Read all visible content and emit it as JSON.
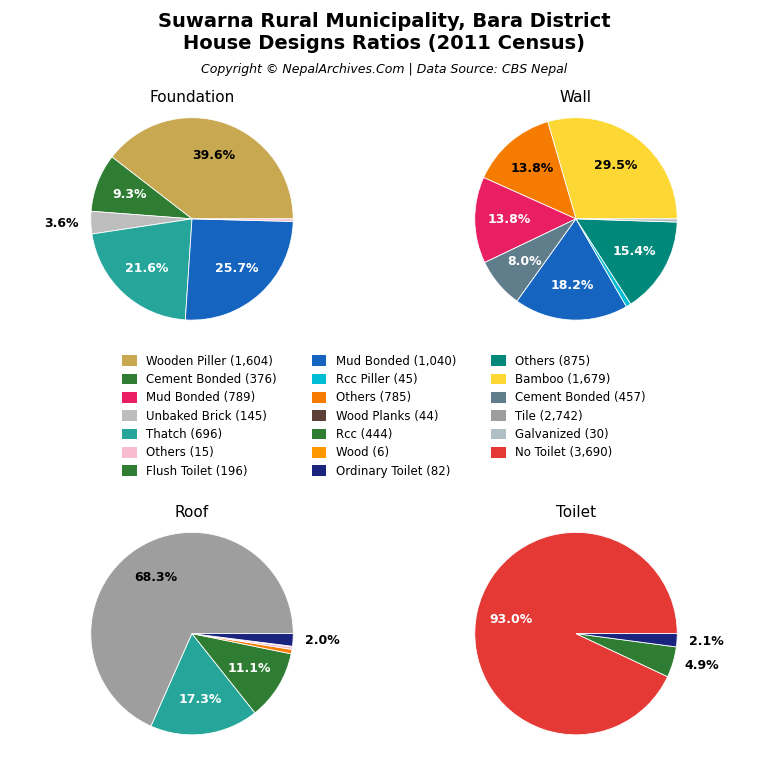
{
  "title": "Suwarna Rural Municipality, Bara District\nHouse Designs Ratios (2011 Census)",
  "subtitle": "Copyright © NepalArchives.Com | Data Source: CBS Nepal",
  "legend_entries": [
    {
      "name": "Wooden Piller (1,604)",
      "color": "#c8a850"
    },
    {
      "name": "Mud Bonded (1,040)",
      "color": "#1565c0"
    },
    {
      "name": "Others (875)",
      "color": "#00897b"
    },
    {
      "name": "Cement Bonded (376)",
      "color": "#2e7d32"
    },
    {
      "name": "Rcc Piller (45)",
      "color": "#00bcd4"
    },
    {
      "name": "Bamboo (1,679)",
      "color": "#fdd835"
    },
    {
      "name": "Mud Bonded (789)",
      "color": "#e91e63"
    },
    {
      "name": "Others (785)",
      "color": "#f57c00"
    },
    {
      "name": "Cement Bonded (457)",
      "color": "#607d8b"
    },
    {
      "name": "Unbaked Brick (145)",
      "color": "#bdbdbd"
    },
    {
      "name": "Wood Planks (44)",
      "color": "#5d4037"
    },
    {
      "name": "Tile (2,742)",
      "color": "#9e9e9e"
    },
    {
      "name": "Thatch (696)",
      "color": "#26a69a"
    },
    {
      "name": "Rcc (444)",
      "color": "#2e7d32"
    },
    {
      "name": "Galvanized (30)",
      "color": "#b0bec5"
    },
    {
      "name": "Others (15)",
      "color": "#f8bbd0"
    },
    {
      "name": "Wood (6)",
      "color": "#ff9800"
    },
    {
      "name": "No Toilet (3,690)",
      "color": "#e53935"
    },
    {
      "name": "Flush Toilet (196)",
      "color": "#2e7d32"
    },
    {
      "name": "Ordinary Toilet (82)",
      "color": "#1a237e"
    }
  ],
  "chart_data": [
    {
      "type": "pie",
      "title": "Foundation",
      "values": [
        39.6,
        9.3,
        3.6,
        21.6,
        25.7,
        0.4
      ],
      "value_labels": [
        "39.6%",
        "9.3%",
        "3.6%",
        "21.6%",
        "25.7%",
        null
      ],
      "colors": [
        "#c8a850",
        "#2e7d32",
        "#bdbdbd",
        "#26a69a",
        "#1565c0",
        "#f8bbd0"
      ],
      "data_labels": true
    },
    {
      "type": "pie",
      "title": "Wall",
      "values": [
        29.5,
        13.8,
        13.8,
        8.0,
        18.2,
        0.8,
        15.4,
        0.5
      ],
      "value_labels": [
        "29.5%",
        "13.8%",
        "13.8%",
        "8.0%",
        "18.2%",
        null,
        "15.4%",
        null
      ],
      "colors": [
        "#fdd835",
        "#f57c00",
        "#e91e63",
        "#607d8b",
        "#1565c0",
        "#00bcd4",
        "#00897b",
        "#b0bec5"
      ],
      "data_labels": true
    },
    {
      "type": "pie",
      "title": "Roof",
      "values": [
        68.3,
        17.3,
        11.1,
        0.7,
        0.4,
        0.1,
        2.0
      ],
      "value_labels": [
        "68.3%",
        "17.3%",
        "11.1%",
        null,
        null,
        null,
        "2.0%"
      ],
      "colors": [
        "#9e9e9e",
        "#26a69a",
        "#2e7d32",
        "#f57c00",
        "#f8bbd0",
        "#ff9800",
        "#1a237e"
      ],
      "data_labels": true
    },
    {
      "type": "pie",
      "title": "Toilet",
      "values": [
        93.0,
        4.9,
        2.1
      ],
      "value_labels": [
        "93.0%",
        "4.9%",
        "2.1%"
      ],
      "colors": [
        "#e53935",
        "#2e7d32",
        "#1a237e"
      ],
      "data_labels": true
    }
  ]
}
